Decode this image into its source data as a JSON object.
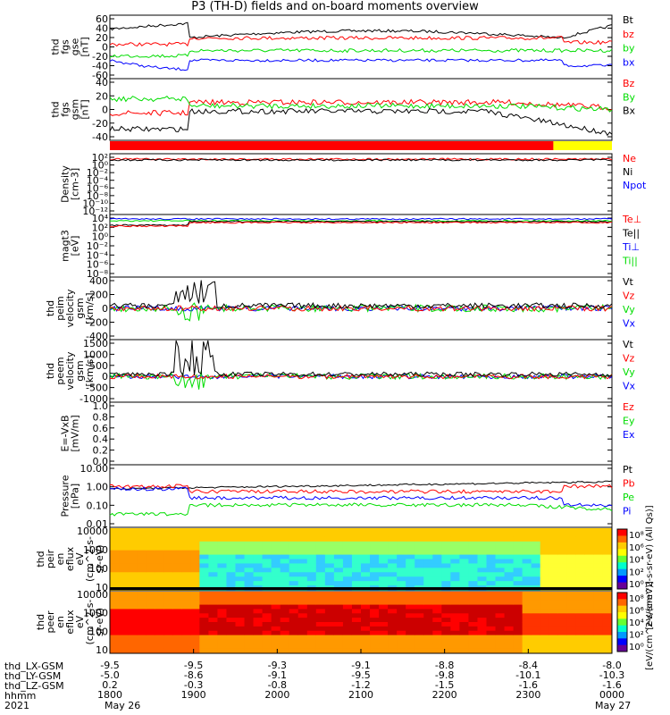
{
  "title": "P3 (TH-D) fields and on-board moments overview",
  "x_ticks": [
    "1800",
    "1900",
    "2000",
    "2100",
    "2200",
    "2300",
    "0000"
  ],
  "date_start": "May 26",
  "date_end": "May 27",
  "year": "2021",
  "ephemeris": {
    "labels": [
      "thd_LX-GSM",
      "thd_LY-GSM",
      "thd_LZ-GSM",
      "hhmm"
    ],
    "rows": [
      [
        "-9.5",
        "-9.5",
        "-9.3",
        "-9.1",
        "-8.8",
        "-8.4",
        "-8.0"
      ],
      [
        "-5.0",
        "-8.6",
        "-9.1",
        "-9.5",
        "-9.8",
        "-10.1",
        "-10.3"
      ],
      [
        "0.2",
        "-0.3",
        "-0.8",
        "-1.2",
        "-1.5",
        "-1.6",
        "-1.6"
      ]
    ]
  },
  "colors": {
    "black": "#000000",
    "red": "#ff0000",
    "green": "#00dd00",
    "blue": "#0000ff",
    "yellow": "#ffff00"
  },
  "chart_data": [
    {
      "type": "line",
      "panel": "fgs_gse",
      "ylabel": [
        "thd",
        "fgs",
        "gse",
        "[nT]"
      ],
      "ylim": [
        -60,
        60
      ],
      "yticks": [
        "60",
        "40",
        "20",
        "0",
        "-20",
        "-40",
        "-60"
      ],
      "series": [
        {
          "name": "Bt",
          "color": "black"
        },
        {
          "name": "bz",
          "color": "red"
        },
        {
          "name": "by",
          "color": "green"
        },
        {
          "name": "bx",
          "color": "blue"
        }
      ]
    },
    {
      "type": "line",
      "panel": "fgs_gsm",
      "ylabel": [
        "thd",
        "fgs",
        "gsm",
        "[nT]"
      ],
      "ylim": [
        -50,
        40
      ],
      "yticks": [
        "40",
        "20",
        "0",
        "-20",
        "-40"
      ],
      "series": [
        {
          "name": "Bz",
          "color": "red"
        },
        {
          "name": "By",
          "color": "green"
        },
        {
          "name": "Bx",
          "color": "black"
        }
      ]
    },
    {
      "type": "heatmap",
      "panel": "mode_bar",
      "segments": [
        {
          "x": [
            1800,
            2330
          ],
          "color": "red"
        },
        {
          "x": [
            2330,
            2400
          ],
          "color": "yellow"
        }
      ]
    },
    {
      "type": "line",
      "panel": "density",
      "ylabel": [
        "Density",
        "[cm-3]"
      ],
      "log": true,
      "yticks": [
        "10²",
        "10⁰",
        "10⁻²",
        "10⁻⁴",
        "10⁻⁶",
        "10⁻⁸",
        "10⁻¹⁰",
        "10⁻¹²"
      ],
      "series": [
        {
          "name": "Ne",
          "color": "red"
        },
        {
          "name": "Ni",
          "color": "black"
        },
        {
          "name": "Npot",
          "color": "blue"
        }
      ]
    },
    {
      "type": "line",
      "panel": "temperature",
      "ylabel": [
        "magt3",
        "[eV]"
      ],
      "log": true,
      "yticks": [
        "10⁴",
        "10²",
        "10⁰",
        "10⁻²",
        "10⁻⁴",
        "10⁻⁶",
        "10⁻⁸"
      ],
      "series": [
        {
          "name": "Te⊥",
          "color": "red"
        },
        {
          "name": "Te||",
          "color": "black"
        },
        {
          "name": "Ti⊥",
          "color": "blue"
        },
        {
          "name": "Ti||",
          "color": "green"
        }
      ]
    },
    {
      "type": "line",
      "panel": "peim_velocity",
      "ylabel": [
        "thd",
        "peim",
        "velocity",
        "gsm",
        "[km/s]"
      ],
      "ylim": [
        -400,
        400
      ],
      "yticks": [
        "400",
        "200",
        "0",
        "-200",
        "-400"
      ],
      "series": [
        {
          "name": "Vt",
          "color": "black"
        },
        {
          "name": "Vz",
          "color": "red"
        },
        {
          "name": "Vy",
          "color": "green"
        },
        {
          "name": "Vx",
          "color": "blue"
        }
      ]
    },
    {
      "type": "line",
      "panel": "peem_velocity",
      "ylabel": [
        "thd",
        "peem",
        "velocity",
        "gsm",
        "[km/s]"
      ],
      "ylim": [
        -1000,
        1500
      ],
      "yticks": [
        "1500",
        "1000",
        "500",
        "0",
        "-500",
        "-1000"
      ],
      "series": [
        {
          "name": "Vt",
          "color": "black"
        },
        {
          "name": "Vz",
          "color": "red"
        },
        {
          "name": "Vy",
          "color": "green"
        },
        {
          "name": "Vx",
          "color": "blue"
        }
      ]
    },
    {
      "type": "line",
      "panel": "efield",
      "ylabel": [
        "E=-VxB",
        "[mV/m]"
      ],
      "ylim": [
        0,
        1
      ],
      "yticks": [
        "1.0",
        "0.8",
        "0.6",
        "0.4",
        "0.2",
        "0.0"
      ],
      "series": [
        {
          "name": "Ez",
          "color": "red"
        },
        {
          "name": "Ey",
          "color": "green"
        },
        {
          "name": "Ex",
          "color": "blue"
        }
      ]
    },
    {
      "type": "line",
      "panel": "pressure",
      "ylabel": [
        "Pressure",
        "[nPa]"
      ],
      "log": true,
      "yticks": [
        "10.00",
        "1.00",
        "0.10",
        "0.01"
      ],
      "series": [
        {
          "name": "Pt",
          "color": "black"
        },
        {
          "name": "Pb",
          "color": "red"
        },
        {
          "name": "Pe",
          "color": "green"
        },
        {
          "name": "Pi",
          "color": "blue"
        }
      ]
    },
    {
      "type": "heatmap",
      "panel": "peir_eflux",
      "ylabel": [
        "thd",
        "peir",
        "en",
        "eflux",
        "eV",
        "(cm^2-s-",
        "sr-eV)"
      ],
      "yticks": [
        "10000",
        "1000",
        "100",
        "10"
      ],
      "colorbar": [
        "10⁸",
        "10⁶",
        "10⁴",
        "10²",
        "10⁰"
      ],
      "colorbar_label": "[eV/(cm^2-s-sr-eV) (All Qs)]"
    },
    {
      "type": "heatmap",
      "panel": "peer_eflux",
      "ylabel": [
        "thd",
        "peer",
        "en",
        "eflux",
        "eV",
        "(cm^2-s-",
        "sr-eV)"
      ],
      "yticks": [
        "10000",
        "1000",
        "100",
        "10"
      ],
      "colorbar": [
        "10⁸",
        "10⁶",
        "10⁴",
        "10²",
        "10⁰"
      ],
      "colorbar_label": "[eV/(cm^2-s-sr-eV)]"
    }
  ]
}
